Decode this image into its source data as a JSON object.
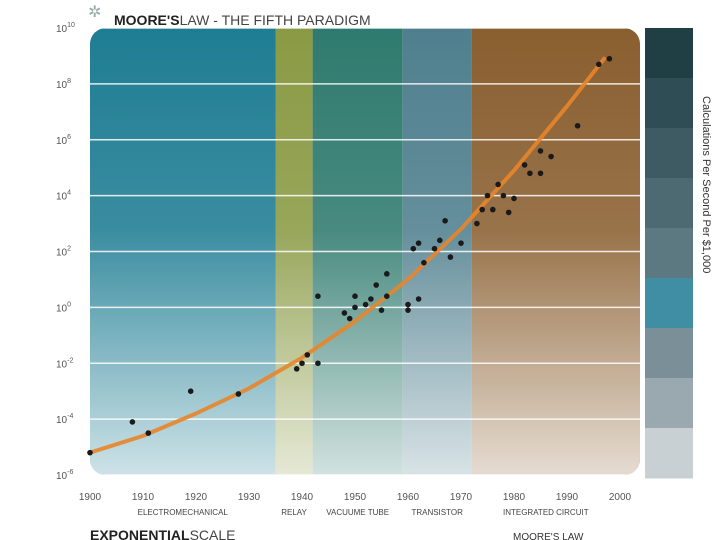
{
  "chart_data": {
    "type": "scatter",
    "title_bold": "MOORE'S",
    "title_rest": "LAW - THE FIFTH PARADIGM",
    "ylabel": "Calculations Per Second Per $1,000",
    "xlim": [
      1900,
      2000
    ],
    "ylim_exponent": [
      -6,
      10
    ],
    "y_scale": "log",
    "x_ticks": [
      "1900",
      "1910",
      "1920",
      "1930",
      "1940",
      "1950",
      "1960",
      "1970",
      "1980",
      "1990",
      "2000"
    ],
    "y_ticks": [
      {
        "base": "10",
        "exp": "10",
        "value": 10
      },
      {
        "base": "10",
        "exp": "8",
        "value": 8
      },
      {
        "base": "10",
        "exp": "6",
        "value": 6
      },
      {
        "base": "10",
        "exp": "4",
        "value": 4
      },
      {
        "base": "10",
        "exp": "2",
        "value": 2
      },
      {
        "base": "10",
        "exp": "0",
        "value": 0
      },
      {
        "base": "10",
        "exp": "-2",
        "value": -2
      },
      {
        "base": "10",
        "exp": "-4",
        "value": -4
      },
      {
        "base": "10",
        "exp": "-6",
        "value": -6
      }
    ],
    "paradigms": [
      {
        "name": "ELECTROMECHANICAL",
        "start": 1900,
        "end": 1935,
        "color": "#1f7d93"
      },
      {
        "name": "RELAY",
        "start": 1935,
        "end": 1942,
        "color": "#8a9a44"
      },
      {
        "name": "VACUUM TUBE",
        "start": 1942,
        "end": 1959,
        "color": "#2f7a6e"
      },
      {
        "name": "TRANSISTOR",
        "start": 1959,
        "end": 1972,
        "color": "#4f7f8e"
      },
      {
        "name": "INTEGRATED CIRCUIT",
        "start": 1972,
        "end": 2000,
        "color": "#8a5f30"
      }
    ],
    "paradigm_labels": [
      "ELECTROMECHANICAL",
      "RELAY",
      "VACUUME TUBE",
      "TRANSISTOR",
      "INTEGRATED CIRCUIT"
    ],
    "trend": [
      {
        "x": 1900,
        "y": -5.2
      },
      {
        "x": 1910,
        "y": -4.6
      },
      {
        "x": 1920,
        "y": -3.8
      },
      {
        "x": 1930,
        "y": -2.9
      },
      {
        "x": 1940,
        "y": -1.8
      },
      {
        "x": 1950,
        "y": -0.5
      },
      {
        "x": 1960,
        "y": 1.0
      },
      {
        "x": 1970,
        "y": 2.8
      },
      {
        "x": 1980,
        "y": 4.9
      },
      {
        "x": 1990,
        "y": 7.2
      },
      {
        "x": 1997,
        "y": 8.9
      }
    ],
    "points": [
      {
        "x": 1900,
        "y": -5.2
      },
      {
        "x": 1908,
        "y": -4.1
      },
      {
        "x": 1911,
        "y": -4.5
      },
      {
        "x": 1919,
        "y": -3.0
      },
      {
        "x": 1928,
        "y": -3.1
      },
      {
        "x": 1939,
        "y": -2.2
      },
      {
        "x": 1940,
        "y": -2.0
      },
      {
        "x": 1941,
        "y": -1.7
      },
      {
        "x": 1943,
        "y": -2.0
      },
      {
        "x": 1943,
        "y": 0.4
      },
      {
        "x": 1948,
        "y": -0.2
      },
      {
        "x": 1949,
        "y": -0.4
      },
      {
        "x": 1950,
        "y": 0.0
      },
      {
        "x": 1950,
        "y": 0.4
      },
      {
        "x": 1952,
        "y": 0.1
      },
      {
        "x": 1953,
        "y": 0.3
      },
      {
        "x": 1954,
        "y": 0.8
      },
      {
        "x": 1955,
        "y": -0.1
      },
      {
        "x": 1956,
        "y": 0.4
      },
      {
        "x": 1956,
        "y": 1.2
      },
      {
        "x": 1960,
        "y": -0.1
      },
      {
        "x": 1960,
        "y": 0.1
      },
      {
        "x": 1961,
        "y": 2.1
      },
      {
        "x": 1962,
        "y": 0.3
      },
      {
        "x": 1962,
        "y": 2.3
      },
      {
        "x": 1963,
        "y": 1.6
      },
      {
        "x": 1965,
        "y": 2.1
      },
      {
        "x": 1966,
        "y": 2.4
      },
      {
        "x": 1967,
        "y": 3.1
      },
      {
        "x": 1968,
        "y": 1.8
      },
      {
        "x": 1970,
        "y": 2.3
      },
      {
        "x": 1973,
        "y": 3.0
      },
      {
        "x": 1974,
        "y": 3.5
      },
      {
        "x": 1975,
        "y": 4.0
      },
      {
        "x": 1976,
        "y": 3.5
      },
      {
        "x": 1977,
        "y": 4.4
      },
      {
        "x": 1978,
        "y": 4.0
      },
      {
        "x": 1979,
        "y": 3.4
      },
      {
        "x": 1980,
        "y": 3.9
      },
      {
        "x": 1982,
        "y": 5.1
      },
      {
        "x": 1983,
        "y": 4.8
      },
      {
        "x": 1985,
        "y": 4.8
      },
      {
        "x": 1985,
        "y": 5.6
      },
      {
        "x": 1987,
        "y": 5.4
      },
      {
        "x": 1992,
        "y": 6.5
      },
      {
        "x": 1996,
        "y": 8.7
      },
      {
        "x": 1998,
        "y": 8.9
      }
    ],
    "color_scale": [
      "#1f3f45",
      "#2f4d55",
      "#3e5b63",
      "#4d6a72",
      "#5c7981",
      "#3f8ea3",
      "#7a8f98",
      "#9aa8b0",
      "#c8d0d4"
    ],
    "trend_color": "#e8852a",
    "grid": true
  },
  "footer": {
    "left_bold": "EXPONENTIAL",
    "left_rest": "SCALE",
    "right": "MOORE'S LAW"
  },
  "colors": {
    "tick_text": "#555555",
    "grid_line": "#ffffff",
    "point": "#1a1a1a"
  }
}
